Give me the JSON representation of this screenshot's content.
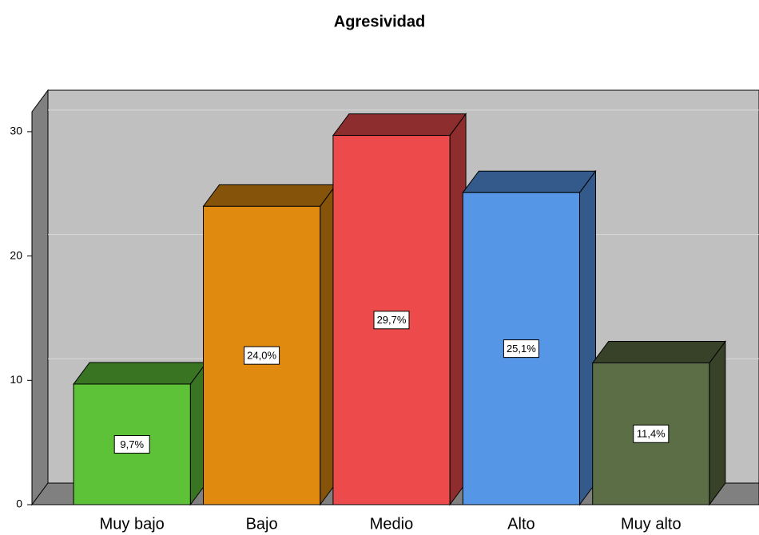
{
  "chart_data": {
    "type": "bar3d",
    "title": "Agresividad",
    "categories": [
      "Muy bajo",
      "Bajo",
      "Medio",
      "Alto",
      "Muy alto"
    ],
    "values": [
      9.7,
      24.0,
      29.7,
      25.1,
      11.4
    ],
    "value_labels": [
      "9,7%",
      "24,0%",
      "29,7%",
      "25,1%",
      "11,4%"
    ],
    "colors": [
      "#5ec238",
      "#e08a10",
      "#ed4b4b",
      "#5596e6",
      "#5b6e45"
    ],
    "ylim": [
      0,
      31.6
    ],
    "yticks": [
      0,
      10,
      20,
      30
    ],
    "grid": true
  }
}
